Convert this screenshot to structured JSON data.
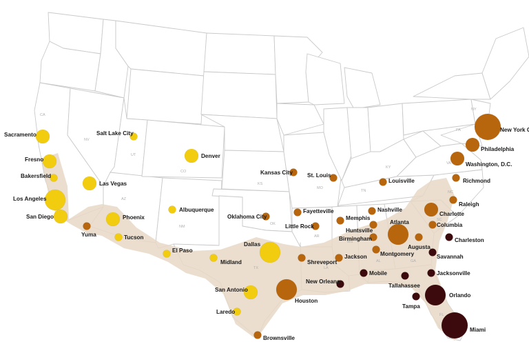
{
  "colors": {
    "tier1": "#f2cc0f",
    "tier2": "#b8660d",
    "tier3": "#3c0a0c",
    "band": "#e7d8c5"
  },
  "credit": "",
  "state_abbrs": [
    "CA",
    "NV",
    "UT",
    "AZ",
    "CO",
    "NM",
    "KS",
    "OK",
    "TX",
    "MO",
    "AR",
    "LA",
    "MS",
    "AL",
    "GA",
    "FL",
    "SC",
    "TN",
    "KY",
    "NC",
    "VA",
    "PA",
    "NY"
  ],
  "cities": [
    {
      "name": "Sacramento",
      "tier": 1,
      "size": 3
    },
    {
      "name": "Fresno",
      "tier": 1,
      "size": 3
    },
    {
      "name": "Bakersfield",
      "tier": 1,
      "size": 1
    },
    {
      "name": "Los Angeles",
      "tier": 1,
      "size": 4
    },
    {
      "name": "San Diego",
      "tier": 1,
      "size": 3
    },
    {
      "name": "Salt Lake City",
      "tier": 1,
      "size": 1
    },
    {
      "name": "Las Vegas",
      "tier": 1,
      "size": 3
    },
    {
      "name": "Denver",
      "tier": 1,
      "size": 3
    },
    {
      "name": "Albuquerque",
      "tier": 1,
      "size": 1
    },
    {
      "name": "Phoenix",
      "tier": 1,
      "size": 3
    },
    {
      "name": "Yuma",
      "tier": 2,
      "size": 1
    },
    {
      "name": "Tucson",
      "tier": 1,
      "size": 1
    },
    {
      "name": "El Paso",
      "tier": 1,
      "size": 1
    },
    {
      "name": "Midland",
      "tier": 1,
      "size": 1
    },
    {
      "name": "Dallas",
      "tier": 1,
      "size": 4
    },
    {
      "name": "San Antonio",
      "tier": 1,
      "size": 3
    },
    {
      "name": "Laredo",
      "tier": 1,
      "size": 1
    },
    {
      "name": "Brownsville",
      "tier": 2,
      "size": 1
    },
    {
      "name": "Houston",
      "tier": 2,
      "size": 4
    },
    {
      "name": "Oklahoma City",
      "tier": 2,
      "size": 1
    },
    {
      "name": "Kansas City",
      "tier": 2,
      "size": 1
    },
    {
      "name": "St. Louis",
      "tier": 2,
      "size": 1
    },
    {
      "name": "Fayetteville",
      "tier": 2,
      "size": 1
    },
    {
      "name": "Little Rock",
      "tier": 2,
      "size": 1
    },
    {
      "name": "Memphis",
      "tier": 2,
      "size": 1
    },
    {
      "name": "Shreveport",
      "tier": 2,
      "size": 1
    },
    {
      "name": "Jackson",
      "tier": 2,
      "size": 1
    },
    {
      "name": "New Orleans",
      "tier": 3,
      "size": 1
    },
    {
      "name": "Louisville",
      "tier": 2,
      "size": 1
    },
    {
      "name": "Nashville",
      "tier": 2,
      "size": 1
    },
    {
      "name": "Huntsville",
      "tier": 2,
      "size": 1
    },
    {
      "name": "Birmingham",
      "tier": 2,
      "size": 1
    },
    {
      "name": "Montgomery",
      "tier": 2,
      "size": 1
    },
    {
      "name": "Mobile",
      "tier": 3,
      "size": 1
    },
    {
      "name": "Atlanta",
      "tier": 2,
      "size": 4
    },
    {
      "name": "Augusta",
      "tier": 2,
      "size": 1
    },
    {
      "name": "Charlotte",
      "tier": 2,
      "size": 3
    },
    {
      "name": "Columbia",
      "tier": 2,
      "size": 1
    },
    {
      "name": "Raleigh",
      "tier": 2,
      "size": 1
    },
    {
      "name": "Charleston",
      "tier": 3,
      "size": 1
    },
    {
      "name": "Savannah",
      "tier": 3,
      "size": 1
    },
    {
      "name": "Jacksonville",
      "tier": 3,
      "size": 1
    },
    {
      "name": "Tallahassee",
      "tier": 3,
      "size": 1
    },
    {
      "name": "Tampa",
      "tier": 3,
      "size": 1
    },
    {
      "name": "Orlando",
      "tier": 3,
      "size": 4
    },
    {
      "name": "Miami",
      "tier": 3,
      "size": 5
    },
    {
      "name": "Richmond",
      "tier": 2,
      "size": 1
    },
    {
      "name": "Washington, D.C.",
      "tier": 2,
      "size": 3
    },
    {
      "name": "Philadelphia",
      "tier": 2,
      "size": 3
    },
    {
      "name": "New York City",
      "tier": 2,
      "size": 5
    }
  ]
}
